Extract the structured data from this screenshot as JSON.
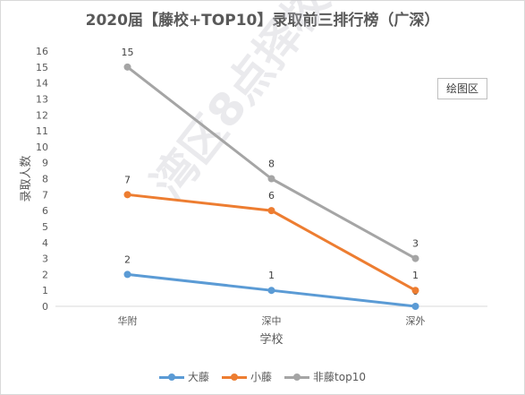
{
  "title": "2020届【藤校+TOP10】录取前三排行榜（广深）",
  "plot_area_tag": "绘图区",
  "watermark": "湾区8点择校",
  "colors": {
    "大藤": "#5b9bd5",
    "小藤": "#ed7d31",
    "非藤top10": "#a5a5a5"
  },
  "chart_data": {
    "type": "line",
    "title": "2020届【藤校+TOP10】录取前三排行榜（广深）",
    "xlabel": "学校",
    "ylabel": "录取人数",
    "categories": [
      "华附",
      "深中",
      "深外"
    ],
    "ylim": [
      0,
      16
    ],
    "yticks": [
      0,
      1,
      2,
      3,
      4,
      5,
      6,
      7,
      8,
      9,
      10,
      11,
      12,
      13,
      14,
      15,
      16
    ],
    "grid": false,
    "legend": "bottom",
    "series": [
      {
        "name": "大藤",
        "values": [
          2,
          1,
          0
        ],
        "labels": [
          "2",
          "1",
          "0"
        ]
      },
      {
        "name": "小藤",
        "values": [
          7,
          6,
          1
        ],
        "labels": [
          "7",
          "6",
          "1"
        ]
      },
      {
        "name": "非藤top10",
        "values": [
          15,
          8,
          3
        ],
        "labels": [
          "15",
          "8",
          "3"
        ]
      }
    ]
  }
}
